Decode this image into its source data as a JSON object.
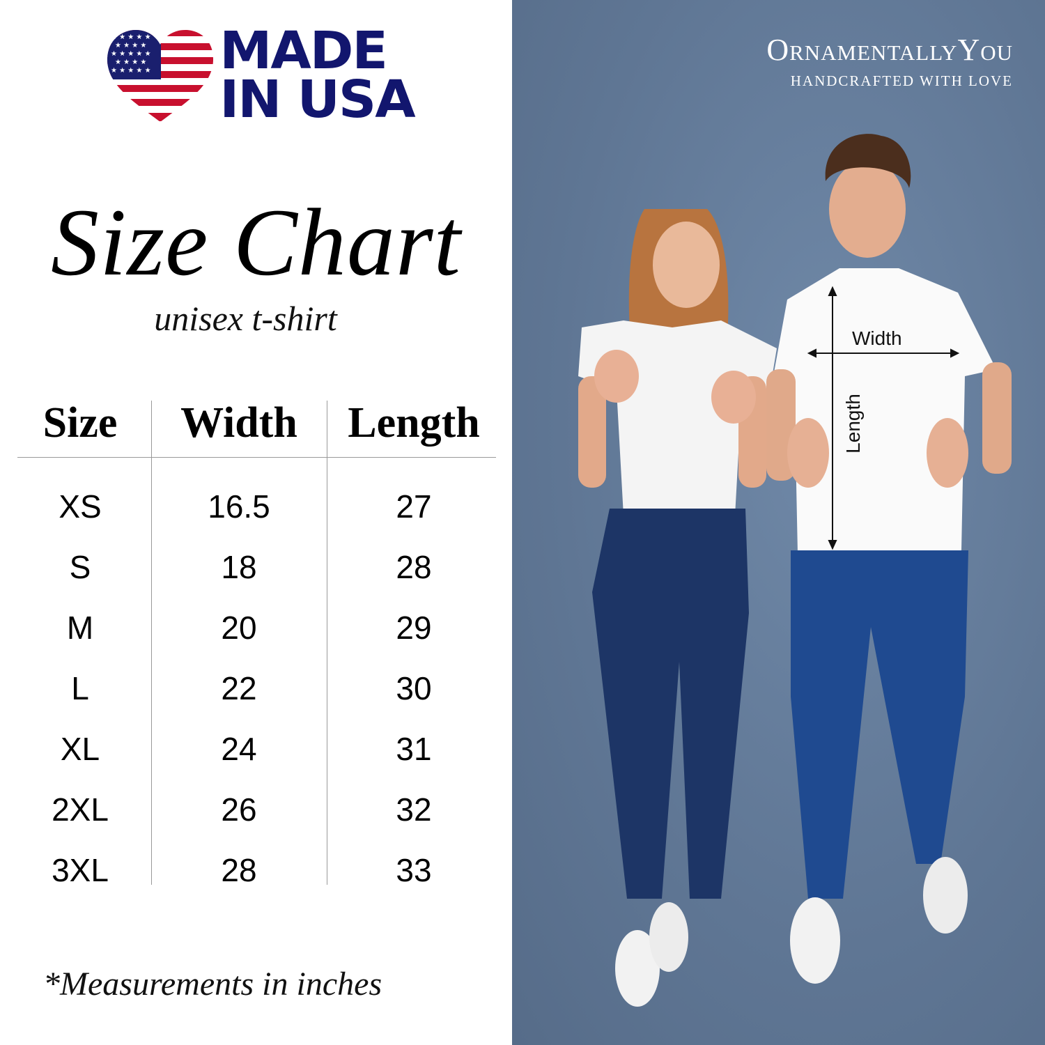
{
  "logo": {
    "line1": "MADE",
    "line2": "IN USA",
    "colors": {
      "navy": "#12166e",
      "red": "#c8102e"
    }
  },
  "title": "Size Chart",
  "subtitle": "unisex t-shirt",
  "table": {
    "headers": [
      "Size",
      "Width",
      "Length"
    ],
    "rows": [
      [
        "XS",
        "16.5",
        "27"
      ],
      [
        "S",
        "18",
        "28"
      ],
      [
        "M",
        "20",
        "29"
      ],
      [
        "L",
        "22",
        "30"
      ],
      [
        "XL",
        "24",
        "31"
      ],
      [
        "2XL",
        "26",
        "32"
      ],
      [
        "3XL",
        "28",
        "33"
      ]
    ]
  },
  "note": "*Measurements in inches",
  "brand": {
    "name": "OrnamentallyYou",
    "tagline": "HANDCRAFTED WITH LOVE"
  },
  "annotations": {
    "width": "Width",
    "length": "Length"
  },
  "colors": {
    "background_photo": "#6a7f9c"
  }
}
